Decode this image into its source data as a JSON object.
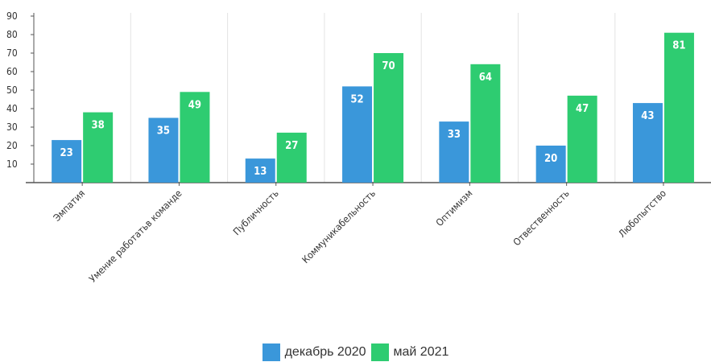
{
  "chart_data": {
    "type": "bar",
    "title": "",
    "xlabel": "",
    "ylabel": "",
    "ylim": [
      0,
      90
    ],
    "yticks": [
      10,
      20,
      30,
      40,
      50,
      60,
      70,
      80,
      90
    ],
    "grid": "vertical",
    "legend_position": "bottom-center",
    "categories": [
      "Эмпатия",
      "Умение работатьв команде",
      "Публичность",
      "Коммуникабельность",
      "Оптимизм",
      "Отвественность",
      "Любопытство"
    ],
    "series": [
      {
        "name": "декабрь 2020",
        "color": "#3a97da",
        "values": [
          23,
          35,
          13,
          52,
          33,
          20,
          43
        ]
      },
      {
        "name": "май 2021",
        "color": "#2ecc71",
        "values": [
          38,
          49,
          27,
          70,
          64,
          47,
          81
        ]
      }
    ]
  }
}
